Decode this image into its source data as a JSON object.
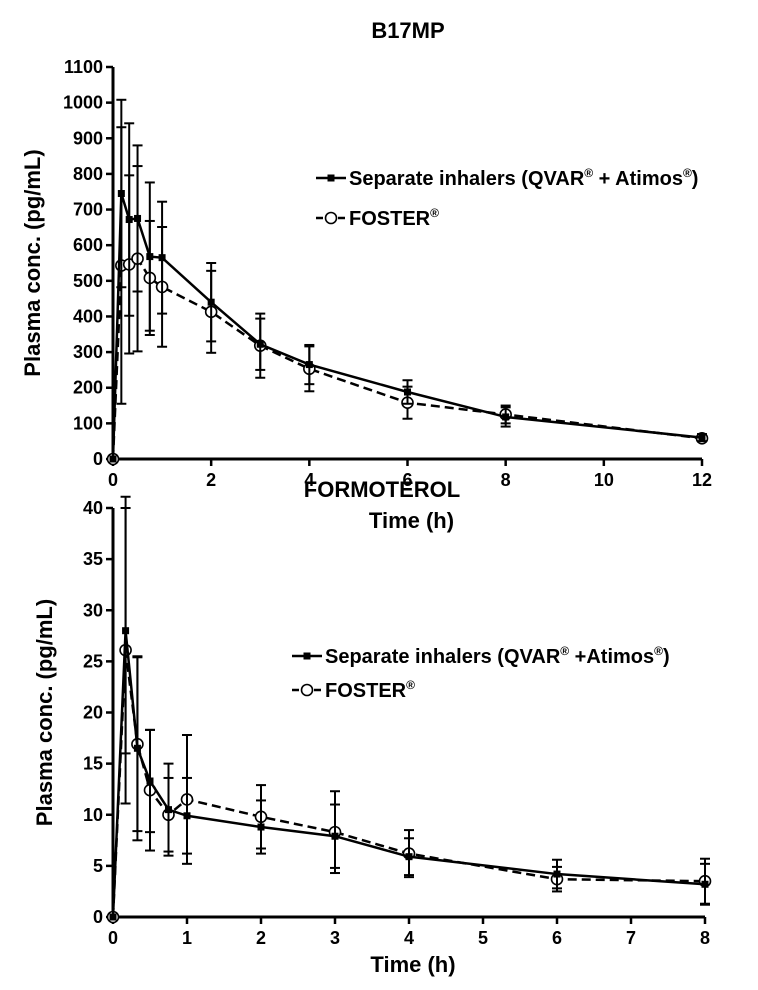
{
  "chart_data": [
    {
      "type": "line",
      "title": "B17MP",
      "xlabel": "Time (h)",
      "ylabel": "Plasma conc. (pg/mL)",
      "xlim": [
        0,
        12
      ],
      "ylim": [
        0,
        1100
      ],
      "xticks": [
        0,
        2,
        4,
        6,
        8,
        10,
        12
      ],
      "yticks": [
        0,
        100,
        200,
        300,
        400,
        500,
        600,
        700,
        800,
        900,
        1000,
        1100
      ],
      "legend_position": "right",
      "series": [
        {
          "legend_main": "Separate inhalers (QVAR",
          "legend_mid": " + Atimos",
          "legend_end": ")",
          "reg": "®",
          "style": "solid",
          "marker": "filled-square",
          "x": [
            0,
            0.17,
            0.33,
            0.5,
            0.75,
            1,
            2,
            3,
            4,
            6,
            8,
            12
          ],
          "y": [
            0,
            745,
            672,
            675,
            568,
            565,
            440,
            322,
            265,
            188,
            118,
            60
          ],
          "err": [
            0,
            263,
            270,
            205,
            208,
            157,
            110,
            72,
            55,
            33,
            27,
            10
          ]
        },
        {
          "legend_main": "FOSTER",
          "legend_mid": "",
          "legend_end": "",
          "reg": "®",
          "style": "dashed",
          "marker": "open-circle",
          "x": [
            0,
            0.17,
            0.33,
            0.5,
            0.75,
            1,
            2,
            3,
            4,
            6,
            8,
            12
          ],
          "y": [
            0,
            543,
            546,
            562,
            508,
            483,
            413,
            318,
            253,
            158,
            125,
            58
          ],
          "err": [
            0,
            388,
            250,
            260,
            160,
            168,
            115,
            90,
            63,
            45,
            25,
            8
          ]
        }
      ]
    },
    {
      "type": "line",
      "title": "FORMOTEROL",
      "xlabel": "Time (h)",
      "ylabel": "Plasma conc. (pg/mL)",
      "xlim": [
        0,
        8
      ],
      "ylim": [
        0,
        40
      ],
      "xticks": [
        0,
        1,
        2,
        3,
        4,
        5,
        6,
        7,
        8
      ],
      "yticks": [
        0,
        5,
        10,
        15,
        20,
        25,
        30,
        35,
        40
      ],
      "legend_position": "right",
      "series": [
        {
          "legend_main": "Separate inhalers (QVAR",
          "legend_mid": " +Atimos",
          "legend_end": ")",
          "reg": "®",
          "style": "solid",
          "marker": "filled-square",
          "x": [
            0,
            0.17,
            0.33,
            0.5,
            0.75,
            1,
            2,
            3,
            4,
            6,
            8
          ],
          "y": [
            0,
            28,
            16.5,
            13.3,
            10.5,
            9.9,
            8.8,
            7.9,
            5.9,
            4.2,
            3.2
          ],
          "err": [
            0,
            12,
            9,
            5,
            4.5,
            3.7,
            2.6,
            3.1,
            1.8,
            1.4,
            2
          ]
        },
        {
          "legend_main": "FOSTER",
          "legend_mid": "",
          "legend_end": "",
          "reg": "®",
          "style": "dashed",
          "marker": "open-circle",
          "x": [
            0,
            0.17,
            0.33,
            0.5,
            0.75,
            1,
            2,
            3,
            4,
            6,
            8
          ],
          "y": [
            0,
            26.1,
            16.9,
            12.4,
            10,
            11.5,
            9.8,
            8.3,
            6.2,
            3.7,
            3.5
          ],
          "err": [
            0,
            15,
            8.5,
            5.9,
            3.6,
            6.3,
            3.1,
            4,
            2.3,
            1.2,
            2.2
          ]
        }
      ]
    }
  ]
}
